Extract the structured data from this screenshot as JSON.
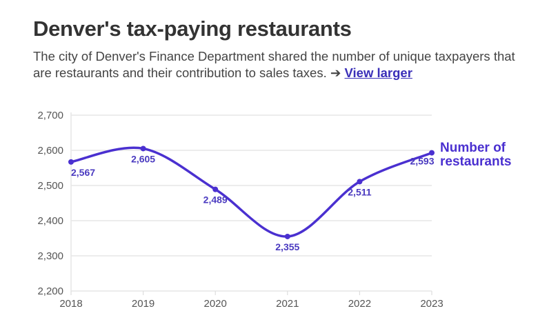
{
  "header": {
    "title": "Denver's tax-paying restaurants",
    "description": "The city of Denver's Finance Department shared the number of unique taxpayers that are restaurants and their contribution to sales taxes. ➔ ",
    "link_label": "View larger"
  },
  "chart_data": {
    "type": "line",
    "title": "Denver's tax-paying restaurants",
    "xlabel": "",
    "ylabel": "",
    "x": [
      "2018",
      "2019",
      "2020",
      "2021",
      "2022",
      "2023"
    ],
    "series": [
      {
        "name": "Number of restaurants",
        "values": [
          2567,
          2605,
          2489,
          2355,
          2511,
          2593
        ],
        "labels": [
          "2,567",
          "2,605",
          "2,489",
          "2,355",
          "2,511",
          "2,593"
        ],
        "color": "#4a30d0"
      }
    ],
    "ylim": [
      2200,
      2700
    ],
    "yticks": [
      2200,
      2300,
      2400,
      2500,
      2600,
      2700
    ],
    "ytick_labels": [
      "2,200",
      "2,300",
      "2,400",
      "2,500",
      "2,600",
      "2,700"
    ],
    "grid": true,
    "legend": "direct-label-right",
    "series_label_lines": [
      "Number of",
      "restaurants"
    ]
  }
}
